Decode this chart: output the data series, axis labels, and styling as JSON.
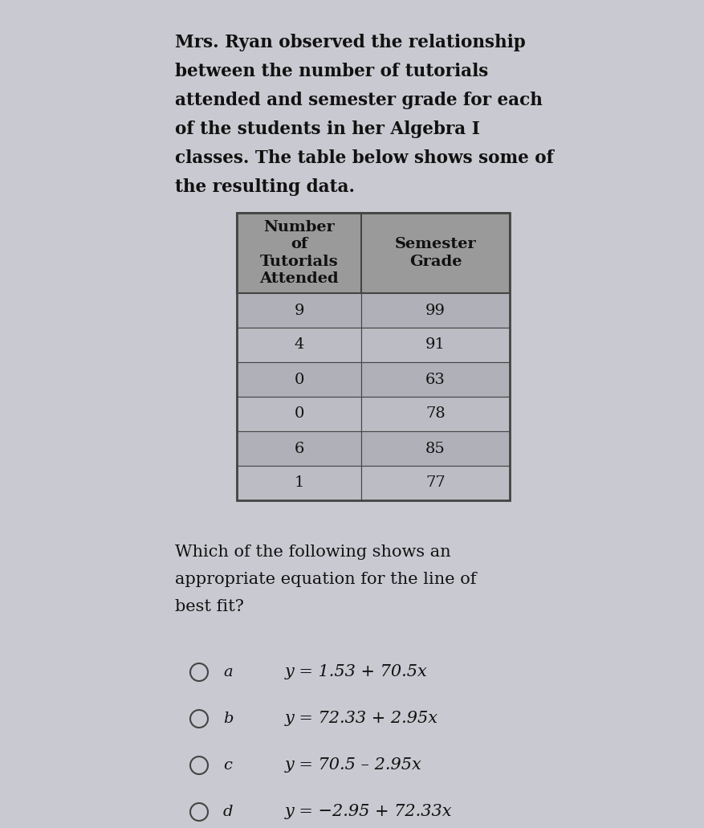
{
  "background_color": "#c9c9d1",
  "paragraph_text_lines": [
    "Mrs. Ryan observed the relationship",
    "between the number of tutorials",
    "attended and semester grade for each",
    "of the students in her Algebra I",
    "classes. The table below shows some of",
    "the resulting data."
  ],
  "table_header": [
    "Number\nof\nTutorials\nAttended",
    "Semester\nGrade"
  ],
  "table_data": [
    [
      "9",
      "99"
    ],
    [
      "4",
      "91"
    ],
    [
      "0",
      "63"
    ],
    [
      "0",
      "78"
    ],
    [
      "6",
      "85"
    ],
    [
      "1",
      "77"
    ]
  ],
  "question_text_lines": [
    "Which of the following shows an",
    "appropriate equation for the line of",
    "best fit?"
  ],
  "choices": [
    {
      "label": "a",
      "text": "y = 1.53 + 70.5x"
    },
    {
      "label": "b",
      "text": "y = 72.33 + 2.95x"
    },
    {
      "label": "c",
      "text": "y = 70.5 – 2.95x"
    },
    {
      "label": "d",
      "text": "y = −2.95 + 72.33x"
    }
  ],
  "font_size_paragraph": 15.5,
  "font_size_table_header": 14,
  "font_size_table_data": 14,
  "font_size_question": 15,
  "font_size_choices": 15,
  "text_color": "#111111",
  "table_header_bg": "#9a9a9a",
  "table_row_bg1": "#b0b0b8",
  "table_row_bg2": "#bcbcc4",
  "table_border_color": "#444444"
}
